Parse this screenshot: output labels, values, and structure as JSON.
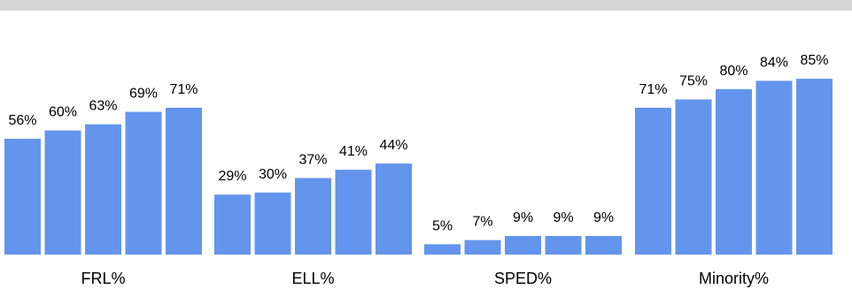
{
  "chart_data": {
    "type": "bar",
    "categories": [
      "FRL%",
      "ELL%",
      "SPED%",
      "Minority%"
    ],
    "series": [
      {
        "values": [
          56,
          29,
          5,
          71
        ]
      },
      {
        "values": [
          60,
          30,
          7,
          75
        ]
      },
      {
        "values": [
          63,
          37,
          9,
          80
        ]
      },
      {
        "values": [
          69,
          41,
          9,
          84
        ]
      },
      {
        "values": [
          71,
          44,
          9,
          85
        ]
      }
    ],
    "value_labels": [
      [
        "56%",
        "60%",
        "63%",
        "69%",
        "71%"
      ],
      [
        "29%",
        "30%",
        "37%",
        "41%",
        "44%"
      ],
      [
        "5%",
        "7%",
        "9%",
        "9%",
        "9%"
      ],
      [
        "71%",
        "75%",
        "80%",
        "84%",
        "85%"
      ]
    ],
    "title": "",
    "xlabel": "",
    "ylabel": "",
    "ylim": [
      0,
      100
    ],
    "grid": false,
    "legend": "none",
    "colors": {
      "bar": "#6495ED",
      "top_band": "#d4d4d4"
    }
  }
}
